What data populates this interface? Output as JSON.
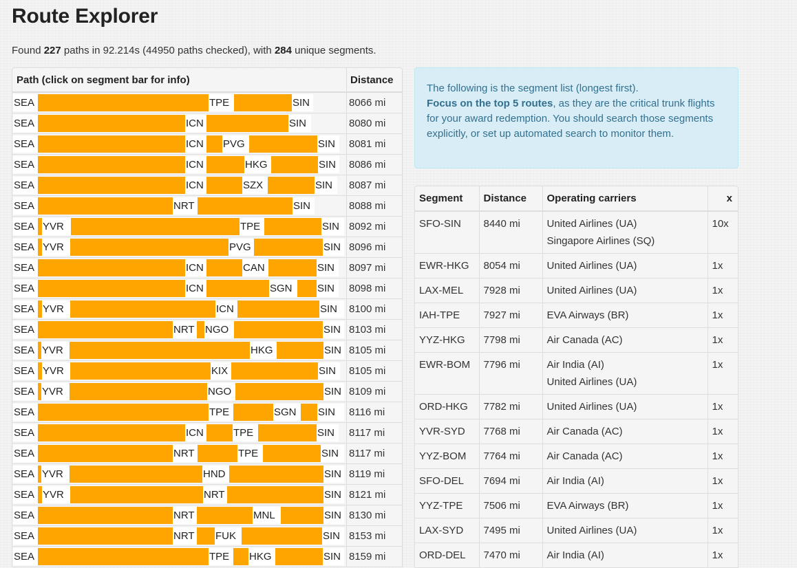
{
  "title": "Route Explorer",
  "summary": {
    "prefix": "Found ",
    "paths_found": "227",
    "mid1": " paths in 92.214s (44950 paths checked), with ",
    "unique_segments": "284",
    "suffix": " unique segments."
  },
  "paths_table": {
    "headers": {
      "path": "Path (click on segment bar for info)",
      "distance": "Distance"
    },
    "colors": {
      "bar": "#ffa500"
    },
    "rows": [
      {
        "distance": "8066 mi",
        "items": [
          [
            "SEA",
            19,
            55
          ],
          [
            "bar",
            55,
            303
          ],
          [
            "TPE",
            303,
            340
          ],
          [
            "bar",
            340,
            424
          ],
          [
            "SIN",
            424,
            455
          ]
        ]
      },
      {
        "distance": "8080 mi",
        "items": [
          [
            "SEA",
            19,
            55
          ],
          [
            "bar",
            55,
            269
          ],
          [
            "ICN",
            269,
            300
          ],
          [
            "bar",
            300,
            419
          ],
          [
            "SIN",
            419,
            452
          ]
        ]
      },
      {
        "distance": "8081 mi",
        "items": [
          [
            "SEA",
            19,
            55
          ],
          [
            "bar",
            55,
            269
          ],
          [
            "ICN",
            269,
            300
          ],
          [
            "bar",
            300,
            323
          ],
          [
            "PVG",
            323,
            362
          ],
          [
            "bar",
            362,
            461
          ],
          [
            "SIN",
            461,
            493
          ]
        ]
      },
      {
        "distance": "8086 mi",
        "items": [
          [
            "SEA",
            19,
            55
          ],
          [
            "bar",
            55,
            269
          ],
          [
            "ICN",
            269,
            300
          ],
          [
            "bar",
            300,
            355
          ],
          [
            "HKG",
            355,
            394
          ],
          [
            "bar",
            394,
            462
          ],
          [
            "SIN",
            462,
            493
          ]
        ]
      },
      {
        "distance": "8087 mi",
        "items": [
          [
            "SEA",
            19,
            55
          ],
          [
            "bar",
            55,
            269
          ],
          [
            "ICN",
            269,
            300
          ],
          [
            "bar",
            300,
            352
          ],
          [
            "SZX",
            352,
            389
          ],
          [
            "bar",
            389,
            457
          ],
          [
            "SIN",
            457,
            490
          ]
        ]
      },
      {
        "distance": "8088 mi",
        "items": [
          [
            "SEA",
            19,
            55
          ],
          [
            "bar",
            55,
            251
          ],
          [
            "NRT",
            251,
            287
          ],
          [
            "bar",
            287,
            425
          ],
          [
            "SIN",
            425,
            457
          ]
        ]
      },
      {
        "distance": "8092 mi",
        "items": [
          [
            "SEA",
            19,
            55
          ],
          [
            "bar",
            55,
            61
          ],
          [
            "YVR",
            61,
            103
          ],
          [
            "bar",
            103,
            348
          ],
          [
            "TPE",
            348,
            384
          ],
          [
            "bar",
            384,
            467
          ],
          [
            "SIN",
            467,
            500
          ]
        ]
      },
      {
        "distance": "8096 mi",
        "items": [
          [
            "SEA",
            19,
            55
          ],
          [
            "bar",
            55,
            61
          ],
          [
            "YVR",
            61,
            102
          ],
          [
            "bar",
            102,
            332
          ],
          [
            "PVG",
            332,
            369
          ],
          [
            "bar",
            369,
            469
          ],
          [
            "SIN",
            469,
            500
          ]
        ]
      },
      {
        "distance": "8097 mi",
        "items": [
          [
            "SEA",
            19,
            55
          ],
          [
            "bar",
            55,
            269
          ],
          [
            "ICN",
            269,
            300
          ],
          [
            "bar",
            300,
            352
          ],
          [
            "CAN",
            352,
            390
          ],
          [
            "bar",
            390,
            460
          ],
          [
            "SIN",
            460,
            492
          ]
        ]
      },
      {
        "distance": "8098 mi",
        "items": [
          [
            "SEA",
            19,
            55
          ],
          [
            "bar",
            55,
            269
          ],
          [
            "ICN",
            269,
            300
          ],
          [
            "bar",
            300,
            391
          ],
          [
            "SGN",
            391,
            432
          ],
          [
            "bar",
            432,
            460
          ],
          [
            "SIN",
            460,
            492
          ]
        ]
      },
      {
        "distance": "8100 mi",
        "items": [
          [
            "SEA",
            19,
            55
          ],
          [
            "bar",
            55,
            61
          ],
          [
            "YVR",
            61,
            102
          ],
          [
            "bar",
            102,
            313
          ],
          [
            "ICN",
            313,
            345
          ],
          [
            "bar",
            345,
            464
          ],
          [
            "SIN",
            464,
            500
          ]
        ]
      },
      {
        "distance": "8103 mi",
        "items": [
          [
            "SEA",
            19,
            55
          ],
          [
            "bar",
            55,
            251
          ],
          [
            "NRT",
            251,
            286
          ],
          [
            "bar",
            286,
            297
          ],
          [
            "NGO",
            297,
            340
          ],
          [
            "bar",
            340,
            469
          ],
          [
            "SIN",
            469,
            500
          ]
        ]
      },
      {
        "distance": "8105 mi",
        "items": [
          [
            "SEA",
            19,
            55
          ],
          [
            "bar",
            55,
            60
          ],
          [
            "YVR",
            60,
            101
          ],
          [
            "bar",
            101,
            363
          ],
          [
            "HKG",
            363,
            402
          ],
          [
            "bar",
            402,
            470
          ],
          [
            "SIN",
            470,
            500
          ]
        ]
      },
      {
        "distance": "8105 mi",
        "items": [
          [
            "SEA",
            19,
            55
          ],
          [
            "bar",
            55,
            61
          ],
          [
            "YVR",
            61,
            102
          ],
          [
            "bar",
            102,
            306
          ],
          [
            "KIX",
            306,
            336
          ],
          [
            "bar",
            336,
            462
          ],
          [
            "SIN",
            462,
            494
          ]
        ]
      },
      {
        "distance": "8109 mi",
        "items": [
          [
            "SEA",
            19,
            55
          ],
          [
            "bar",
            55,
            60
          ],
          [
            "YVR",
            60,
            101
          ],
          [
            "bar",
            101,
            301
          ],
          [
            "NGO",
            301,
            342
          ],
          [
            "bar",
            342,
            470
          ],
          [
            "SIN",
            470,
            500
          ]
        ]
      },
      {
        "distance": "8116 mi",
        "items": [
          [
            "SEA",
            19,
            55
          ],
          [
            "bar",
            55,
            303
          ],
          [
            "TPE",
            303,
            339
          ],
          [
            "bar",
            339,
            397
          ],
          [
            "SGN",
            397,
            437
          ],
          [
            "bar",
            437,
            461
          ],
          [
            "SIN",
            461,
            500
          ]
        ]
      },
      {
        "distance": "8117 mi",
        "items": [
          [
            "SEA",
            19,
            55
          ],
          [
            "bar",
            55,
            269
          ],
          [
            "ICN",
            269,
            300
          ],
          [
            "bar",
            300,
            338
          ],
          [
            "TPE",
            338,
            375
          ],
          [
            "bar",
            375,
            460
          ],
          [
            "SIN",
            460,
            492
          ]
        ]
      },
      {
        "distance": "8117 mi",
        "items": [
          [
            "SEA",
            19,
            55
          ],
          [
            "bar",
            55,
            251
          ],
          [
            "NRT",
            251,
            287
          ],
          [
            "bar",
            287,
            345
          ],
          [
            "TPE",
            345,
            382
          ],
          [
            "bar",
            382,
            466
          ],
          [
            "SIN",
            466,
            500
          ]
        ]
      },
      {
        "distance": "8119 mi",
        "items": [
          [
            "SEA",
            19,
            55
          ],
          [
            "bar",
            55,
            60
          ],
          [
            "YVR",
            60,
            101
          ],
          [
            "bar",
            101,
            294
          ],
          [
            "HND",
            294,
            333
          ],
          [
            "bar",
            333,
            470
          ],
          [
            "SIN",
            470,
            500
          ]
        ]
      },
      {
        "distance": "8121 mi",
        "items": [
          [
            "SEA",
            19,
            55
          ],
          [
            "bar",
            55,
            61
          ],
          [
            "YVR",
            61,
            102
          ],
          [
            "bar",
            102,
            295
          ],
          [
            "NRT",
            295,
            330
          ],
          [
            "bar",
            330,
            470
          ],
          [
            "SIN",
            470,
            500
          ]
        ]
      },
      {
        "distance": "8130 mi",
        "items": [
          [
            "SEA",
            19,
            55
          ],
          [
            "bar",
            55,
            251
          ],
          [
            "NRT",
            251,
            286
          ],
          [
            "bar",
            286,
            367
          ],
          [
            "MNL",
            367,
            408
          ],
          [
            "bar",
            408,
            470
          ],
          [
            "SIN",
            470,
            500
          ]
        ]
      },
      {
        "distance": "8153 mi",
        "items": [
          [
            "SEA",
            19,
            55
          ],
          [
            "bar",
            55,
            251
          ],
          [
            "NRT",
            251,
            286
          ],
          [
            "bar",
            286,
            312
          ],
          [
            "FUK",
            312,
            351
          ],
          [
            "bar",
            351,
            468
          ],
          [
            "SIN",
            468,
            500
          ]
        ]
      },
      {
        "distance": "8159 mi",
        "items": [
          [
            "SEA",
            19,
            55
          ],
          [
            "bar",
            55,
            303
          ],
          [
            "TPE",
            303,
            339
          ],
          [
            "bar",
            339,
            361
          ],
          [
            "HKG",
            361,
            400
          ],
          [
            "bar",
            400,
            469
          ],
          [
            "SIN",
            469,
            500
          ]
        ]
      }
    ]
  },
  "alert": {
    "line1": "The following is the segment list (longest first).",
    "emphasis": "Focus on the top 5 routes",
    "rest": ", as they are the critical trunk flights for your award redemption. You should search those segments explicitly, or set up automated search to monitor them.",
    "colors": {
      "background": "#d9edf7",
      "text": "#31708f",
      "border": "#bce8f1"
    }
  },
  "segments_table": {
    "headers": {
      "segment": "Segment",
      "distance": "Distance",
      "carriers": "Operating carriers",
      "count": "x"
    },
    "rows": [
      {
        "segment": "SFO-SIN",
        "distance": "8440 mi",
        "carriers": [
          "United Airlines (UA)",
          "Singapore Airlines (SQ)"
        ],
        "count": "10x"
      },
      {
        "segment": "EWR-HKG",
        "distance": "8054 mi",
        "carriers": [
          "United Airlines (UA)"
        ],
        "count": "1x"
      },
      {
        "segment": "LAX-MEL",
        "distance": "7928 mi",
        "carriers": [
          "United Airlines (UA)"
        ],
        "count": "1x"
      },
      {
        "segment": "IAH-TPE",
        "distance": "7927 mi",
        "carriers": [
          "EVA Airways (BR)"
        ],
        "count": "1x"
      },
      {
        "segment": "YYZ-HKG",
        "distance": "7798 mi",
        "carriers": [
          "Air Canada (AC)"
        ],
        "count": "1x"
      },
      {
        "segment": "EWR-BOM",
        "distance": "7796 mi",
        "carriers": [
          "Air India (AI)",
          "United Airlines (UA)"
        ],
        "count": "1x"
      },
      {
        "segment": "ORD-HKG",
        "distance": "7782 mi",
        "carriers": [
          "United Airlines (UA)"
        ],
        "count": "1x"
      },
      {
        "segment": "YVR-SYD",
        "distance": "7768 mi",
        "carriers": [
          "Air Canada (AC)"
        ],
        "count": "1x"
      },
      {
        "segment": "YYZ-BOM",
        "distance": "7764 mi",
        "carriers": [
          "Air Canada (AC)"
        ],
        "count": "1x"
      },
      {
        "segment": "SFO-DEL",
        "distance": "7694 mi",
        "carriers": [
          "Air India (AI)"
        ],
        "count": "1x"
      },
      {
        "segment": "YYZ-TPE",
        "distance": "7506 mi",
        "carriers": [
          "EVA Airways (BR)"
        ],
        "count": "1x"
      },
      {
        "segment": "LAX-SYD",
        "distance": "7495 mi",
        "carriers": [
          "United Airlines (UA)"
        ],
        "count": "1x"
      },
      {
        "segment": "ORD-DEL",
        "distance": "7470 mi",
        "carriers": [
          "Air India (AI)"
        ],
        "count": "1x"
      }
    ]
  }
}
